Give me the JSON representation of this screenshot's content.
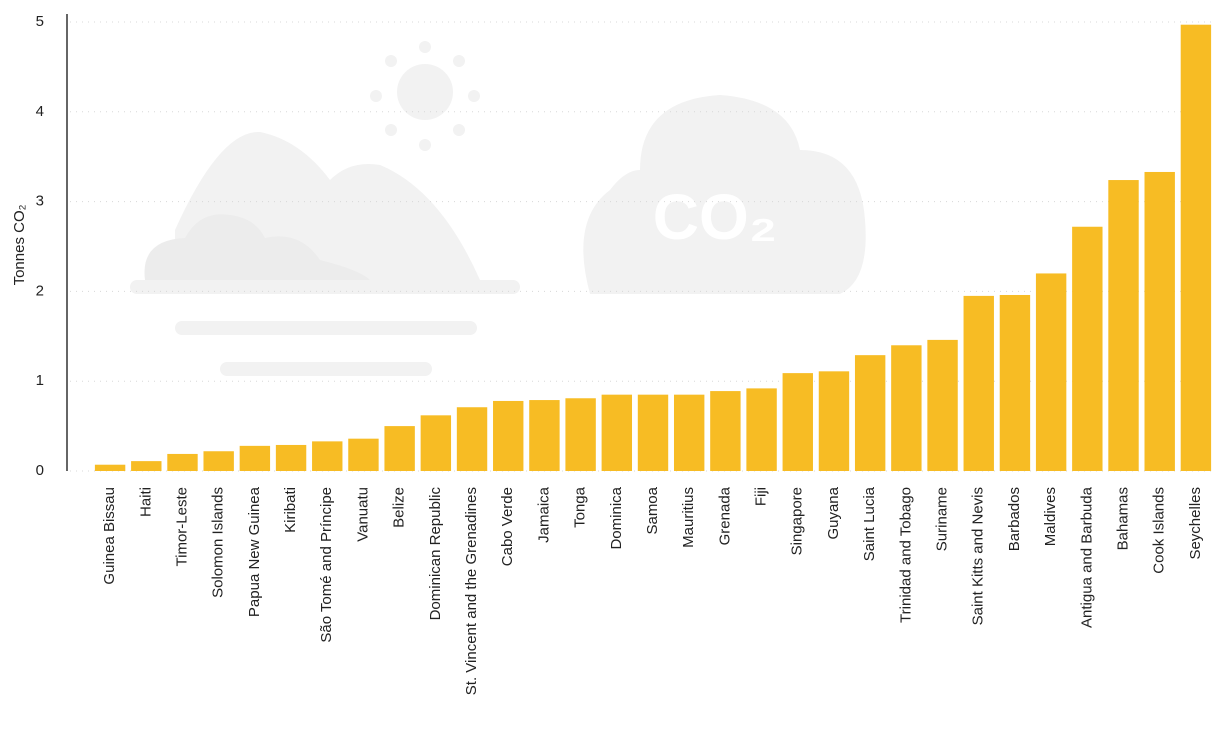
{
  "chart_data": {
    "type": "bar",
    "y_label": "Tonnes CO₂",
    "annotations": [
      "CO₂"
    ],
    "categories": [
      "Guinea Bissau",
      "Haiti",
      "Timor-Leste",
      "Solomon Islands",
      "Papua New Guinea",
      "Kiribati",
      "São Tomé and Príncipe",
      "Vanuatu",
      "Belize",
      "Dominican Republic",
      "St. Vincent and the Grenadines",
      "Cabo Verde",
      "Jamaica",
      "Tonga",
      "Dominica",
      "Samoa",
      "Mauritius",
      "Grenada",
      "Fiji",
      "Singapore",
      "Guyana",
      "Saint Lucia",
      "Trinidad and Tobago",
      "Suriname",
      "Saint Kitts and Nevis",
      "Barbados",
      "Maldives",
      "Antigua and Barbuda",
      "Bahamas",
      "Cook Islands",
      "Seychelles"
    ],
    "values": [
      0.07,
      0.11,
      0.19,
      0.22,
      0.28,
      0.29,
      0.33,
      0.36,
      0.5,
      0.62,
      0.71,
      0.78,
      0.79,
      0.81,
      0.85,
      0.85,
      0.85,
      0.89,
      0.92,
      1.09,
      1.11,
      1.29,
      1.4,
      1.46,
      1.95,
      1.96,
      2.2,
      2.72,
      3.24,
      3.33,
      4.97
    ],
    "color": "#f7bc24",
    "ylim": [
      0,
      5
    ],
    "yticks": [
      0,
      1,
      2,
      3,
      4,
      5
    ],
    "grid": true
  }
}
